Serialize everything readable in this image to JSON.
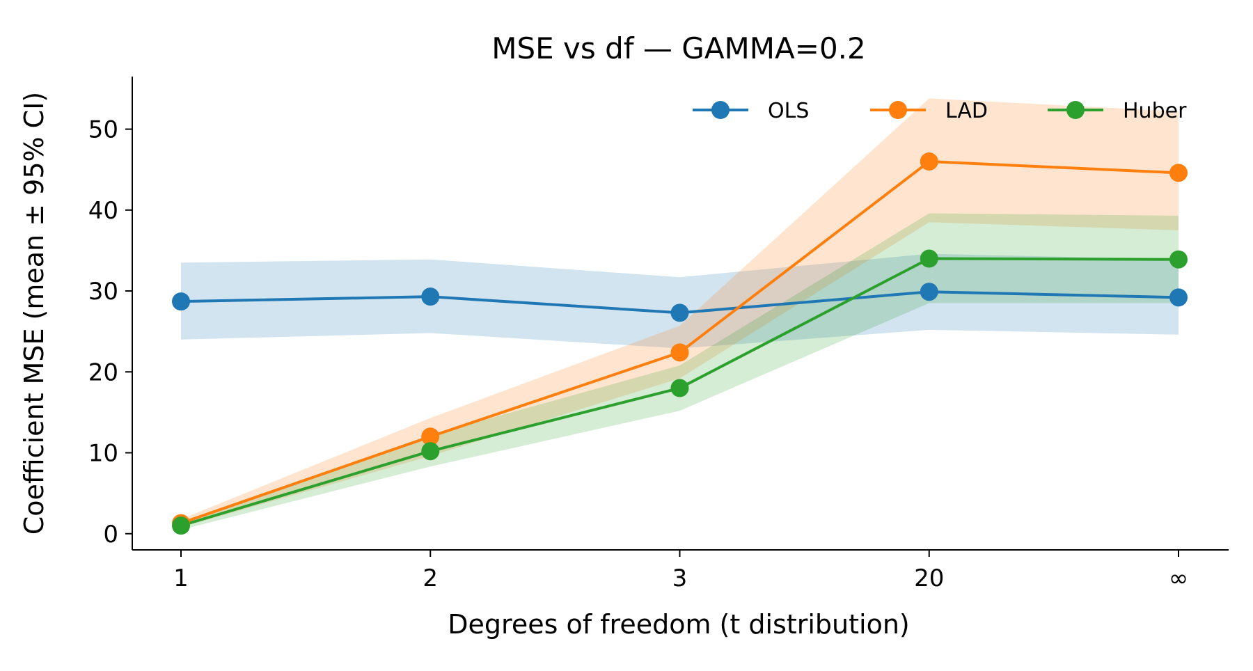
{
  "chart_data": {
    "type": "line",
    "title": "MSE vs df — GAMMA=0.2",
    "xlabel": "Degrees of freedom (t distribution)",
    "ylabel": "Coefficient MSE (mean ± 95% CI)",
    "categories": [
      "1",
      "2",
      "3",
      "20",
      "∞"
    ],
    "ylim": [
      -2,
      56.5
    ],
    "yticks": [
      0,
      10,
      20,
      30,
      40,
      50
    ],
    "grid": false,
    "legend_position": "top-right",
    "series": [
      {
        "name": "OLS",
        "color": "#1f77b4",
        "values": [
          28.7,
          29.3,
          27.3,
          29.9,
          29.2
        ],
        "ci_lower": [
          24.0,
          24.8,
          22.9,
          25.2,
          24.6
        ],
        "ci_upper": [
          33.5,
          33.9,
          31.7,
          34.6,
          33.9
        ]
      },
      {
        "name": "LAD",
        "color": "#ff7f0e",
        "values": [
          1.3,
          12.0,
          22.4,
          46.0,
          44.6
        ],
        "ci_lower": [
          0.8,
          9.6,
          19.2,
          38.5,
          37.5
        ],
        "ci_upper": [
          1.8,
          14.3,
          25.7,
          53.8,
          52.2
        ]
      },
      {
        "name": "Huber",
        "color": "#2ca02c",
        "values": [
          1.0,
          10.2,
          18.0,
          34.0,
          33.9
        ],
        "ci_lower": [
          0.5,
          8.3,
          15.2,
          28.5,
          28.5
        ],
        "ci_upper": [
          1.5,
          12.2,
          20.8,
          39.6,
          39.3
        ]
      }
    ]
  }
}
